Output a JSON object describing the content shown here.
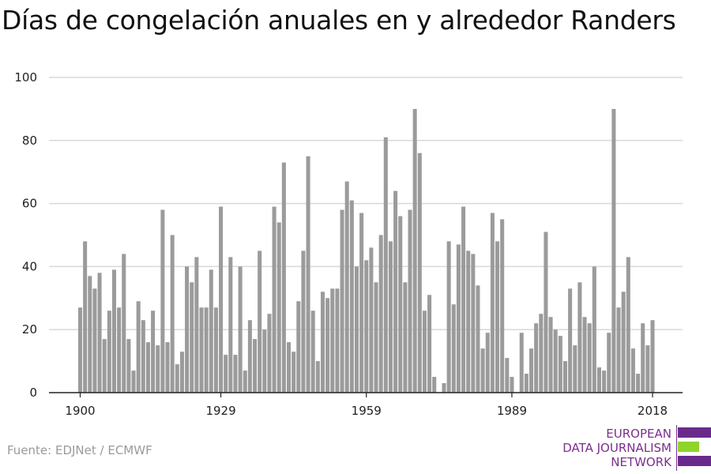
{
  "title": "Días de congelación anuales en y alrededor Randers",
  "source": "Fuente: EDJNet / ECMWF",
  "logo": {
    "lines": [
      "EUROPEAN",
      "DATA JOURNALISM",
      "NETWORK"
    ],
    "colors": {
      "purple": "#6a2a8c",
      "green": "#8fd42b"
    }
  },
  "colors": {
    "bar": "#9b9b9b",
    "grid": "#d9d9d9",
    "axis": "#222222"
  },
  "chart_data": {
    "type": "bar",
    "title": "Días de congelación anuales en y alrededor Randers",
    "xlabel": "",
    "ylabel": "",
    "ylim": [
      0,
      100
    ],
    "yticks": [
      0,
      20,
      40,
      60,
      80,
      100
    ],
    "xticks": [
      1900,
      1929,
      1959,
      1989,
      2018
    ],
    "grid": true,
    "start_year": 1900,
    "end_year": 2018,
    "values": [
      27,
      48,
      37,
      33,
      38,
      17,
      26,
      39,
      27,
      44,
      17,
      7,
      29,
      23,
      16,
      26,
      15,
      58,
      16,
      50,
      9,
      13,
      40,
      35,
      43,
      27,
      27,
      39,
      27,
      59,
      12,
      43,
      12,
      40,
      7,
      23,
      17,
      45,
      20,
      25,
      59,
      54,
      73,
      16,
      13,
      29,
      45,
      75,
      26,
      10,
      32,
      30,
      33,
      33,
      58,
      67,
      61,
      40,
      57,
      42,
      46,
      35,
      50,
      81,
      48,
      64,
      56,
      35,
      58,
      90,
      76,
      26,
      31,
      5,
      0,
      3,
      48,
      28,
      47,
      59,
      45,
      44,
      34,
      14,
      19,
      57,
      48,
      55,
      11,
      5,
      0,
      19,
      6,
      14,
      22,
      25,
      51,
      24,
      20,
      18,
      10,
      33,
      15,
      35,
      24,
      22,
      40,
      8,
      7,
      19,
      90,
      27,
      32,
      43,
      14,
      6,
      22,
      15,
      23
    ]
  }
}
